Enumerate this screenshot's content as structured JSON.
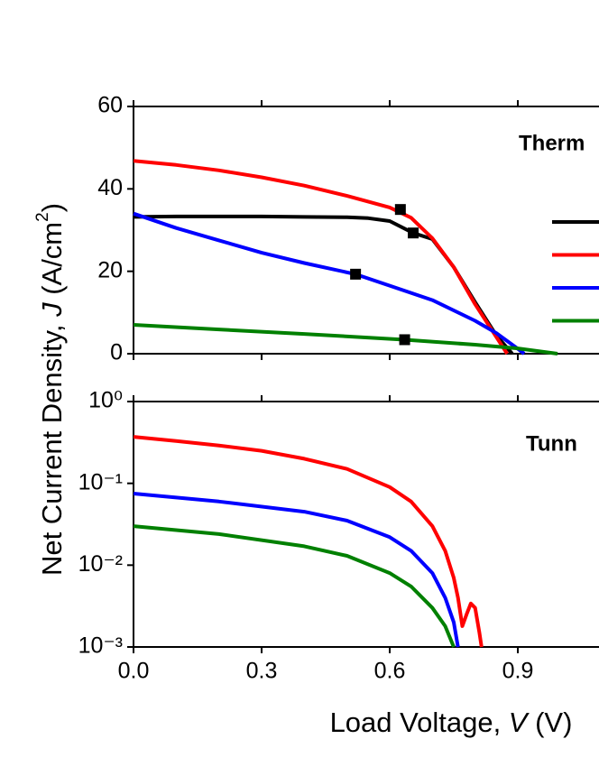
{
  "chart_data": [
    {
      "type": "line",
      "note": "Therm",
      "ylabel": [
        "Net Current Density, ",
        "J",
        " (A/cm",
        "2",
        ")"
      ],
      "xlim": [
        0,
        1.2
      ],
      "ylim": [
        0,
        60
      ],
      "yticks": [
        0,
        20,
        40,
        60
      ],
      "xticks": [
        0,
        0.3,
        0.6,
        0.9
      ],
      "legend": "right",
      "series": [
        {
          "color": "#000000",
          "x": [
            0,
            0.1,
            0.2,
            0.3,
            0.4,
            0.5,
            0.55,
            0.6,
            0.655,
            0.7,
            0.75,
            0.8,
            0.85,
            0.887
          ],
          "values": [
            33.2,
            33.3,
            33.3,
            33.3,
            33.2,
            33.1,
            32.9,
            32.2,
            29.3,
            27.8,
            21,
            12.5,
            4.4,
            0
          ]
        },
        {
          "color": "#ff0000",
          "x": [
            0,
            0.1,
            0.2,
            0.3,
            0.4,
            0.5,
            0.6,
            0.65,
            0.7,
            0.75,
            0.8,
            0.85,
            0.875
          ],
          "values": [
            46.8,
            45.8,
            44.5,
            42.8,
            40.8,
            38.3,
            35.5,
            33,
            28,
            21,
            12,
            4,
            0
          ]
        },
        {
          "color": "#0000ff",
          "x": [
            0,
            0.1,
            0.2,
            0.3,
            0.4,
            0.52,
            0.6,
            0.7,
            0.8,
            0.85,
            0.9,
            0.915
          ],
          "values": [
            34,
            30.5,
            27.5,
            24.5,
            22,
            19.3,
            16.5,
            13,
            8,
            5,
            1.2,
            0
          ]
        },
        {
          "color": "#008000",
          "x": [
            0,
            0.2,
            0.4,
            0.635,
            0.8,
            0.9,
            0.993
          ],
          "values": [
            7,
            5.9,
            4.8,
            3.4,
            2.2,
            1.3,
            0
          ]
        }
      ],
      "points": {
        "color": "#000000",
        "x": [
          0.625,
          0.655,
          0.52,
          0.635
        ],
        "values": [
          35,
          29.3,
          19.3,
          3.4
        ]
      }
    },
    {
      "type": "line",
      "note": "Tunn",
      "log_y": true,
      "xlabel": [
        "Load Voltage, ",
        "V",
        " (V)"
      ],
      "xlim": [
        0,
        1.2
      ],
      "ylim": [
        0.001,
        1
      ],
      "yticks": [
        {
          "value": 1,
          "label": "10⁰"
        },
        {
          "value": 0.1,
          "label": "10⁻¹"
        },
        {
          "value": 0.01,
          "label": "10⁻²"
        },
        {
          "value": 0.001,
          "label": "10⁻³"
        }
      ],
      "xticks": [
        {
          "value": 0,
          "label": "0.0"
        },
        0.3,
        0.6,
        0.9
      ],
      "series": [
        {
          "color": "#ff0000",
          "x": [
            0,
            0.1,
            0.2,
            0.3,
            0.4,
            0.5,
            0.6,
            0.65,
            0.7,
            0.73,
            0.75,
            0.76,
            0.77,
            0.78,
            0.79,
            0.8,
            0.81,
            0.815
          ],
          "values": [
            0.37,
            0.33,
            0.29,
            0.25,
            0.2,
            0.15,
            0.09,
            0.06,
            0.03,
            0.015,
            0.007,
            0.004,
            0.0018,
            0.0025,
            0.0034,
            0.003,
            0.0015,
            0.001
          ]
        },
        {
          "color": "#0000ff",
          "x": [
            0,
            0.2,
            0.4,
            0.5,
            0.6,
            0.65,
            0.7,
            0.73,
            0.75,
            0.76
          ],
          "values": [
            0.075,
            0.06,
            0.045,
            0.035,
            0.022,
            0.015,
            0.008,
            0.004,
            0.002,
            0.001
          ]
        },
        {
          "color": "#008000",
          "x": [
            0,
            0.2,
            0.4,
            0.5,
            0.6,
            0.65,
            0.7,
            0.73,
            0.75
          ],
          "values": [
            0.03,
            0.024,
            0.017,
            0.013,
            0.008,
            0.0055,
            0.003,
            0.0018,
            0.001
          ]
        }
      ]
    }
  ]
}
